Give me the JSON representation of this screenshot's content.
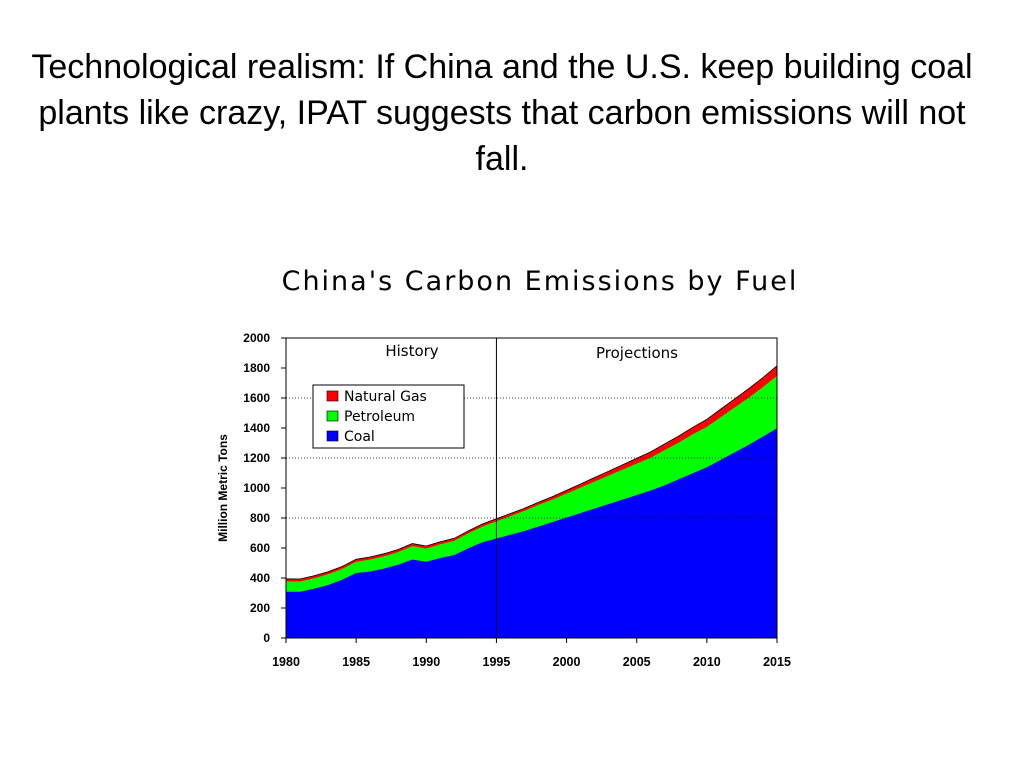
{
  "slide": {
    "title": "Technological realism: If China and the U.S. keep building coal plants like crazy, IPAT suggests that carbon emissions will not fall."
  },
  "chart_data": {
    "type": "area",
    "stacked": true,
    "title": "China's Carbon Emissions by Fuel",
    "xlabel": "",
    "ylabel": "Million Metric Tons",
    "xlim": [
      1980,
      2015
    ],
    "ylim": [
      0,
      2000
    ],
    "x_ticks": [
      1980,
      1985,
      1990,
      1995,
      2000,
      2005,
      2010,
      2015
    ],
    "y_ticks": [
      0,
      200,
      400,
      600,
      800,
      1000,
      1200,
      1400,
      1600,
      1800,
      2000
    ],
    "region_divider_x": 1995,
    "region_labels": [
      "History",
      "Projections"
    ],
    "legend_placement": "top-left",
    "gridlines": "dotted horizontal at 800, 1200, 1600 (left and right of legend)",
    "x": [
      1980,
      1981,
      1982,
      1983,
      1984,
      1985,
      1986,
      1987,
      1988,
      1989,
      1990,
      1991,
      1992,
      1993,
      1994,
      1995,
      1996,
      1997,
      1998,
      1999,
      2000,
      2001,
      2002,
      2003,
      2004,
      2005,
      2006,
      2007,
      2008,
      2009,
      2010,
      2011,
      2012,
      2013,
      2014,
      2015
    ],
    "series": [
      {
        "name": "Coal",
        "color": "#0000ff",
        "values": [
          310,
          310,
          330,
          355,
          390,
          435,
          445,
          465,
          490,
          525,
          510,
          535,
          555,
          600,
          640,
          665,
          690,
          715,
          745,
          775,
          805,
          835,
          865,
          895,
          925,
          955,
          985,
          1020,
          1060,
          1100,
          1140,
          1190,
          1240,
          1290,
          1345,
          1400
        ]
      },
      {
        "name": "Petroleum",
        "color": "#00ff00",
        "values": [
          70,
          68,
          70,
          72,
          72,
          75,
          80,
          82,
          85,
          90,
          88,
          92,
          95,
          100,
          105,
          115,
          125,
          135,
          145,
          150,
          160,
          170,
          180,
          190,
          200,
          210,
          220,
          235,
          245,
          260,
          270,
          285,
          300,
          315,
          330,
          350
        ]
      },
      {
        "name": "Natural Gas",
        "color": "#ff0000",
        "values": [
          15,
          15,
          15,
          15,
          15,
          15,
          15,
          15,
          15,
          15,
          15,
          15,
          15,
          15,
          15,
          15,
          15,
          15,
          15,
          18,
          20,
          22,
          25,
          27,
          30,
          33,
          36,
          39,
          42,
          45,
          48,
          52,
          55,
          58,
          61,
          65
        ]
      }
    ]
  }
}
